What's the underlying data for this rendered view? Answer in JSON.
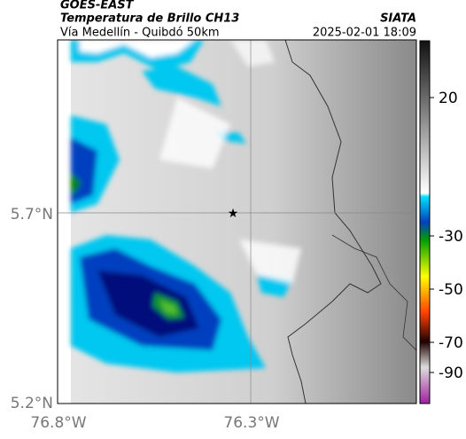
{
  "header": {
    "satellite": "GOES-EAST",
    "product": "Temperatura de Brillo CH13",
    "agency": "SIATA",
    "route": "Vía Medellín - Quibdó 50km",
    "datetime": "2025-02-01 18:09"
  },
  "map": {
    "lat_labels": [
      "5.7°N",
      "5.2°N"
    ],
    "lon_labels": [
      "76.8°W",
      "76.3°W"
    ]
  },
  "colorbar": {
    "ticks": [
      20,
      -30,
      -50,
      -70,
      -90
    ]
  }
}
